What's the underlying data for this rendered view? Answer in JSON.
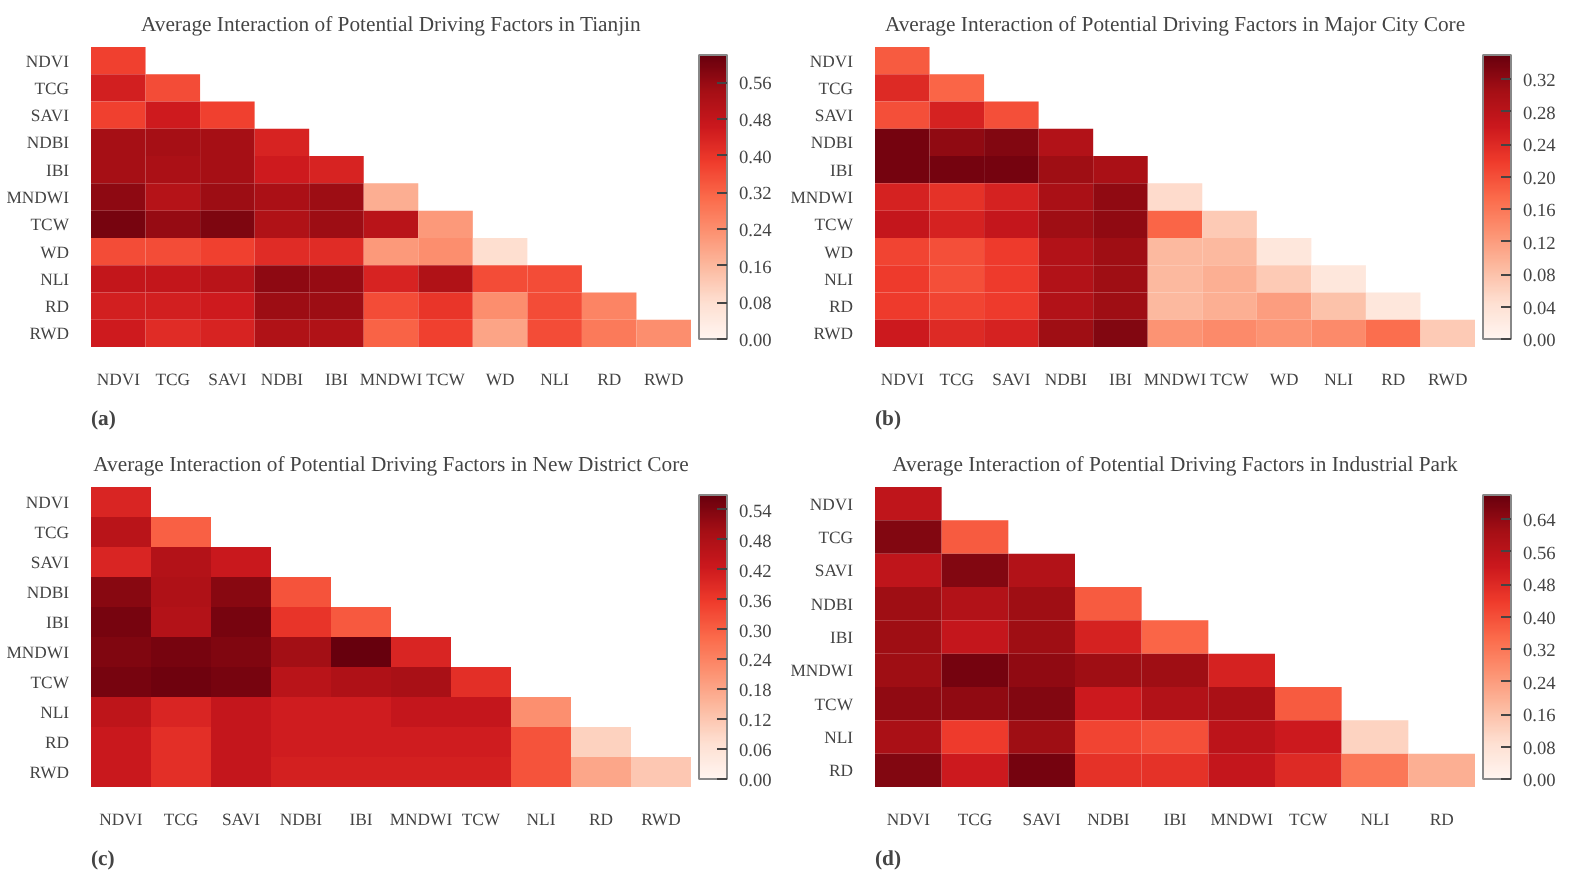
{
  "chart_data": [
    {
      "type": "heatmap",
      "title": "Average Interaction of Potential Driving Factors in Tianjin",
      "annotations": [
        "(a)"
      ],
      "categories": [
        "NDVI",
        "TCG",
        "SAVI",
        "NDBI",
        "IBI",
        "MNDWI",
        "TCW",
        "WD",
        "NLI",
        "RD",
        "RWD"
      ],
      "y_categories": [
        "NDVI",
        "TCG",
        "SAVI",
        "NDBI",
        "IBI",
        "MNDWI",
        "TCW",
        "WD",
        "NLI",
        "RD",
        "RWD"
      ],
      "cells": [
        [
          0.38,
          null,
          null,
          null,
          null,
          null,
          null,
          null,
          null,
          null,
          null
        ],
        [
          0.45,
          0.36,
          null,
          null,
          null,
          null,
          null,
          null,
          null,
          null,
          null
        ],
        [
          0.38,
          0.46,
          0.38,
          null,
          null,
          null,
          null,
          null,
          null,
          null,
          null
        ],
        [
          0.54,
          0.54,
          0.54,
          0.44,
          null,
          null,
          null,
          null,
          null,
          null,
          null
        ],
        [
          0.54,
          0.53,
          0.54,
          0.46,
          0.44,
          null,
          null,
          null,
          null,
          null,
          null
        ],
        [
          0.57,
          0.51,
          0.55,
          0.53,
          0.55,
          0.18,
          null,
          null,
          null,
          null,
          null
        ],
        [
          0.6,
          0.56,
          0.59,
          0.52,
          0.55,
          0.5,
          0.22,
          null,
          null,
          null,
          null
        ],
        [
          0.36,
          0.36,
          0.38,
          0.42,
          0.42,
          0.22,
          0.24,
          0.08,
          null,
          null,
          null
        ],
        [
          0.48,
          0.48,
          0.5,
          0.57,
          0.56,
          0.44,
          0.52,
          0.36,
          0.36,
          null,
          null
        ],
        [
          0.45,
          0.45,
          0.46,
          0.55,
          0.55,
          0.36,
          0.4,
          0.24,
          0.36,
          0.26,
          null
        ],
        [
          0.46,
          0.42,
          0.44,
          0.52,
          0.52,
          0.32,
          0.38,
          0.2,
          0.36,
          0.28,
          0.24
        ]
      ],
      "clim": [
        0,
        0.62
      ],
      "cticks": [
        {
          "value": 0,
          "label": "0.00"
        },
        {
          "value": 0.08,
          "label": "0.08"
        },
        {
          "value": 0.16,
          "label": "0.16"
        },
        {
          "value": 0.24,
          "label": "0.24"
        },
        {
          "value": 0.32,
          "label": "0.32"
        },
        {
          "value": 0.4,
          "label": "0.40"
        },
        {
          "value": 0.48,
          "label": "0.48"
        },
        {
          "value": 0.56,
          "label": "0.56"
        }
      ]
    },
    {
      "type": "heatmap",
      "title": "Average Interaction of Potential Driving Factors in Major City Core",
      "annotations": [
        "(b)"
      ],
      "categories": [
        "NDVI",
        "TCG",
        "SAVI",
        "NDBI",
        "IBI",
        "MNDWI",
        "TCW",
        "WD",
        "NLI",
        "RD",
        "RWD"
      ],
      "y_categories": [
        "NDVI",
        "TCG",
        "SAVI",
        "NDBI",
        "IBI",
        "MNDWI",
        "TCW",
        "WD",
        "NLI",
        "RD",
        "RWD"
      ],
      "cells": [
        [
          0.19,
          null,
          null,
          null,
          null,
          null,
          null,
          null,
          null,
          null,
          null
        ],
        [
          0.24,
          0.18,
          null,
          null,
          null,
          null,
          null,
          null,
          null,
          null,
          null
        ],
        [
          0.2,
          0.25,
          0.2,
          null,
          null,
          null,
          null,
          null,
          null,
          null,
          null
        ],
        [
          0.34,
          0.32,
          0.33,
          0.29,
          null,
          null,
          null,
          null,
          null,
          null,
          null
        ],
        [
          0.34,
          0.34,
          0.34,
          0.31,
          0.3,
          null,
          null,
          null,
          null,
          null,
          null
        ],
        [
          0.25,
          0.23,
          0.25,
          0.3,
          0.32,
          0.05,
          null,
          null,
          null,
          null,
          null
        ],
        [
          0.27,
          0.25,
          0.27,
          0.31,
          0.32,
          0.18,
          0.07,
          null,
          null,
          null,
          null
        ],
        [
          0.21,
          0.2,
          0.22,
          0.29,
          0.31,
          0.09,
          0.09,
          0.03,
          null,
          null,
          null
        ],
        [
          0.22,
          0.2,
          0.22,
          0.29,
          0.31,
          0.09,
          0.1,
          0.07,
          0.03,
          null,
          null
        ],
        [
          0.22,
          0.21,
          0.22,
          0.29,
          0.31,
          0.09,
          0.1,
          0.12,
          0.08,
          0.03,
          null
        ],
        [
          0.26,
          0.24,
          0.25,
          0.31,
          0.33,
          0.13,
          0.14,
          0.13,
          0.14,
          0.17,
          0.07
        ]
      ],
      "clim": [
        0,
        0.35
      ],
      "cticks": [
        {
          "value": 0,
          "label": "0.00"
        },
        {
          "value": 0.04,
          "label": "0.04"
        },
        {
          "value": 0.08,
          "label": "0.08"
        },
        {
          "value": 0.12,
          "label": "0.12"
        },
        {
          "value": 0.16,
          "label": "0.16"
        },
        {
          "value": 0.2,
          "label": "0.20"
        },
        {
          "value": 0.24,
          "label": "0.24"
        },
        {
          "value": 0.28,
          "label": "0.28"
        },
        {
          "value": 0.32,
          "label": "0.32"
        }
      ]
    },
    {
      "type": "heatmap",
      "title": "Average Interaction of Potential Driving Factors in New District Core",
      "annotations": [
        "(c)"
      ],
      "categories": [
        "NDVI",
        "TCG",
        "SAVI",
        "NDBI",
        "IBI",
        "MNDWI",
        "TCW",
        "NLI",
        "RD",
        "RWD"
      ],
      "y_categories": [
        "NDVI",
        "TCG",
        "SAVI",
        "NDBI",
        "IBI",
        "MNDWI",
        "TCW",
        "NLI",
        "RD",
        "RWD"
      ],
      "cells": [
        [
          0.4,
          null,
          null,
          null,
          null,
          null,
          null,
          null,
          null,
          null
        ],
        [
          0.46,
          0.3,
          null,
          null,
          null,
          null,
          null,
          null,
          null,
          null
        ],
        [
          0.4,
          0.47,
          0.43,
          null,
          null,
          null,
          null,
          null,
          null,
          null
        ],
        [
          0.53,
          0.48,
          0.53,
          0.32,
          null,
          null,
          null,
          null,
          null,
          null
        ],
        [
          0.55,
          0.47,
          0.55,
          0.37,
          0.31,
          null,
          null,
          null,
          null,
          null
        ],
        [
          0.54,
          0.55,
          0.54,
          0.5,
          0.57,
          0.4,
          null,
          null,
          null,
          null
        ],
        [
          0.55,
          0.56,
          0.55,
          0.46,
          0.48,
          0.49,
          0.38,
          null,
          null,
          null
        ],
        [
          0.45,
          0.4,
          0.44,
          0.42,
          0.42,
          0.44,
          0.44,
          0.22,
          null,
          null
        ],
        [
          0.43,
          0.38,
          0.44,
          0.42,
          0.42,
          0.42,
          0.42,
          0.32,
          0.1,
          null
        ],
        [
          0.43,
          0.38,
          0.44,
          0.41,
          0.41,
          0.41,
          0.41,
          0.32,
          0.18,
          0.12
        ]
      ],
      "clim": [
        0,
        0.57
      ],
      "cticks": [
        {
          "value": 0,
          "label": "0.00"
        },
        {
          "value": 0.06,
          "label": "0.06"
        },
        {
          "value": 0.12,
          "label": "0.12"
        },
        {
          "value": 0.18,
          "label": "0.18"
        },
        {
          "value": 0.24,
          "label": "0.24"
        },
        {
          "value": 0.3,
          "label": "0.30"
        },
        {
          "value": 0.36,
          "label": "0.36"
        },
        {
          "value": 0.42,
          "label": "0.42"
        },
        {
          "value": 0.48,
          "label": "0.48"
        },
        {
          "value": 0.54,
          "label": "0.54"
        }
      ]
    },
    {
      "type": "heatmap",
      "title": "Average Interaction of Potential Driving Factors in Industrial Park",
      "annotations": [
        "(d)"
      ],
      "categories": [
        "NDVI",
        "TCG",
        "SAVI",
        "NDBI",
        "IBI",
        "MNDWI",
        "TCW",
        "NLI",
        "RD"
      ],
      "y_categories": [
        "NDVI",
        "TCG",
        "SAVI",
        "NDBI",
        "IBI",
        "MNDWI",
        "TCW",
        "NLI",
        "RD"
      ],
      "cells": [
        [
          0.55,
          null,
          null,
          null,
          null,
          null,
          null,
          null,
          null
        ],
        [
          0.66,
          0.38,
          null,
          null,
          null,
          null,
          null,
          null,
          null
        ],
        [
          0.55,
          0.66,
          0.58,
          null,
          null,
          null,
          null,
          null,
          null
        ],
        [
          0.62,
          0.58,
          0.62,
          0.38,
          null,
          null,
          null,
          null,
          null
        ],
        [
          0.62,
          0.54,
          0.62,
          0.5,
          0.36,
          null,
          null,
          null,
          null
        ],
        [
          0.62,
          0.68,
          0.64,
          0.62,
          0.62,
          0.5,
          null,
          null,
          null
        ],
        [
          0.64,
          0.64,
          0.66,
          0.52,
          0.58,
          0.6,
          0.38,
          null,
          null
        ],
        [
          0.6,
          0.44,
          0.62,
          0.42,
          0.4,
          0.56,
          0.52,
          0.12,
          null
        ],
        [
          0.66,
          0.52,
          0.68,
          0.46,
          0.46,
          0.54,
          0.48,
          0.32,
          0.2
        ]
      ],
      "clim": [
        0,
        0.7
      ],
      "cticks": [
        {
          "value": 0,
          "label": "0.00"
        },
        {
          "value": 0.08,
          "label": "0.08"
        },
        {
          "value": 0.16,
          "label": "0.16"
        },
        {
          "value": 0.24,
          "label": "0.24"
        },
        {
          "value": 0.32,
          "label": "0.32"
        },
        {
          "value": 0.4,
          "label": "0.40"
        },
        {
          "value": 0.48,
          "label": "0.48"
        },
        {
          "value": 0.56,
          "label": "0.56"
        },
        {
          "value": 0.64,
          "label": "0.64"
        }
      ]
    }
  ]
}
